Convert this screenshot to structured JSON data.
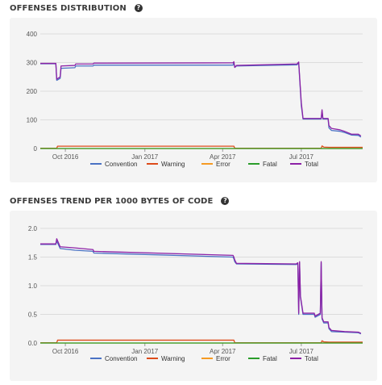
{
  "chart_data": [
    {
      "type": "line",
      "title": "OFFENSES DISTRIBUTION",
      "xlabel": "",
      "ylabel": "",
      "ylim": [
        0,
        400
      ],
      "y_ticks": [
        0,
        100,
        200,
        300,
        400
      ],
      "x_ticks": [
        {
          "label": "Oct 2016",
          "date": "2016-10-01"
        },
        {
          "label": "Jan 2017",
          "date": "2017-01-01"
        },
        {
          "label": "Apr 2017",
          "date": "2017-04-01"
        },
        {
          "label": "Jul 2017",
          "date": "2017-07-01"
        }
      ],
      "xlim": [
        "2016-09-02",
        "2017-09-10"
      ],
      "grid": "horizontal",
      "legend": "bottom",
      "series": [
        {
          "name": "Convention",
          "color": "#4a72c4",
          "points": [
            [
              "2016-09-02",
              296
            ],
            [
              "2016-09-20",
              296
            ],
            [
              "2016-09-21",
              238
            ],
            [
              "2016-09-25",
              245
            ],
            [
              "2016-09-26",
              280
            ],
            [
              "2016-10-12",
              282
            ],
            [
              "2016-10-13",
              288
            ],
            [
              "2016-11-02",
              288
            ],
            [
              "2016-11-03",
              291
            ],
            [
              "2017-04-13",
              291
            ],
            [
              "2017-04-14",
              299
            ],
            [
              "2017-04-15",
              283
            ],
            [
              "2017-04-17",
              288
            ],
            [
              "2017-06-26",
              292
            ],
            [
              "2017-06-28",
              298
            ],
            [
              "2017-07-01",
              150
            ],
            [
              "2017-07-03",
              103
            ],
            [
              "2017-07-24",
              103
            ],
            [
              "2017-07-25",
              130
            ],
            [
              "2017-07-26",
              103
            ],
            [
              "2017-08-01",
              103
            ],
            [
              "2017-08-02",
              72
            ],
            [
              "2017-08-05",
              63
            ],
            [
              "2017-08-15",
              60
            ],
            [
              "2017-08-20",
              56
            ],
            [
              "2017-08-28",
              47
            ],
            [
              "2017-09-05",
              46
            ],
            [
              "2017-09-08",
              40
            ]
          ]
        },
        {
          "name": "Warning",
          "color": "#dd4b1a",
          "points": [
            [
              "2016-09-02",
              1
            ],
            [
              "2016-09-21",
              1
            ],
            [
              "2016-09-22",
              8
            ],
            [
              "2017-04-14",
              8
            ],
            [
              "2017-04-15",
              1
            ],
            [
              "2017-07-24",
              1
            ],
            [
              "2017-07-25",
              9
            ],
            [
              "2017-07-27",
              5
            ],
            [
              "2017-08-02",
              4
            ],
            [
              "2017-09-10",
              4
            ]
          ]
        },
        {
          "name": "Error",
          "color": "#f59a23",
          "points": [
            [
              "2016-09-02",
              0
            ],
            [
              "2017-09-10",
              0
            ]
          ]
        },
        {
          "name": "Fatal",
          "color": "#2a9d2a",
          "points": [
            [
              "2016-09-02",
              0
            ],
            [
              "2017-09-10",
              0
            ]
          ]
        },
        {
          "name": "Total",
          "color": "#8c21a6",
          "points": [
            [
              "2016-09-02",
              297
            ],
            [
              "2016-09-20",
              297
            ],
            [
              "2016-09-21",
              242
            ],
            [
              "2016-09-25",
              250
            ],
            [
              "2016-09-26",
              288
            ],
            [
              "2016-10-12",
              290
            ],
            [
              "2016-10-13",
              295
            ],
            [
              "2016-11-02",
              295
            ],
            [
              "2016-11-03",
              298
            ],
            [
              "2017-04-13",
              299
            ],
            [
              "2017-04-14",
              303
            ],
            [
              "2017-04-15",
              283
            ],
            [
              "2017-04-17",
              290
            ],
            [
              "2017-06-26",
              295
            ],
            [
              "2017-06-28",
              302
            ],
            [
              "2017-07-01",
              160
            ],
            [
              "2017-07-03",
              105
            ],
            [
              "2017-07-24",
              105
            ],
            [
              "2017-07-25",
              135
            ],
            [
              "2017-07-26",
              105
            ],
            [
              "2017-08-01",
              105
            ],
            [
              "2017-08-02",
              80
            ],
            [
              "2017-08-05",
              70
            ],
            [
              "2017-08-15",
              65
            ],
            [
              "2017-08-20",
              60
            ],
            [
              "2017-08-28",
              50
            ],
            [
              "2017-09-05",
              50
            ],
            [
              "2017-09-08",
              44
            ]
          ]
        }
      ]
    },
    {
      "type": "line",
      "title": "OFFENSES TREND PER 1000 BYTES OF CODE",
      "xlabel": "",
      "ylabel": "",
      "ylim": [
        0,
        2.0
      ],
      "y_ticks": [
        0.0,
        0.5,
        1.0,
        1.5,
        2.0
      ],
      "x_ticks": [
        {
          "label": "Oct 2016",
          "date": "2016-10-01"
        },
        {
          "label": "Jan 2017",
          "date": "2017-01-01"
        },
        {
          "label": "Apr 2017",
          "date": "2017-04-01"
        },
        {
          "label": "Jul 2017",
          "date": "2017-07-01"
        }
      ],
      "xlim": [
        "2016-09-02",
        "2017-09-10"
      ],
      "grid": "horizontal",
      "legend": "bottom",
      "series": [
        {
          "name": "Convention",
          "color": "#4a72c4",
          "points": [
            [
              "2016-09-02",
              1.72
            ],
            [
              "2016-09-20",
              1.72
            ],
            [
              "2016-09-21",
              1.78
            ],
            [
              "2016-09-25",
              1.65
            ],
            [
              "2016-10-12",
              1.62
            ],
            [
              "2016-11-02",
              1.6
            ],
            [
              "2016-11-03",
              1.57
            ],
            [
              "2017-04-13",
              1.5
            ],
            [
              "2017-04-14",
              1.47
            ],
            [
              "2017-04-15",
              1.42
            ],
            [
              "2017-04-17",
              1.38
            ],
            [
              "2017-06-25",
              1.37
            ],
            [
              "2017-06-27",
              1.38
            ],
            [
              "2017-06-28",
              0.5
            ],
            [
              "2017-06-29",
              1.4
            ],
            [
              "2017-06-30",
              0.8
            ],
            [
              "2017-07-03",
              0.5
            ],
            [
              "2017-07-16",
              0.5
            ],
            [
              "2017-07-17",
              0.45
            ],
            [
              "2017-07-23",
              0.5
            ],
            [
              "2017-07-24",
              1.4
            ],
            [
              "2017-07-25",
              0.42
            ],
            [
              "2017-07-27",
              0.35
            ],
            [
              "2017-08-01",
              0.35
            ],
            [
              "2017-08-02",
              0.25
            ],
            [
              "2017-08-05",
              0.2
            ],
            [
              "2017-08-20",
              0.19
            ],
            [
              "2017-09-05",
              0.18
            ],
            [
              "2017-09-08",
              0.16
            ]
          ]
        },
        {
          "name": "Warning",
          "color": "#dd4b1a",
          "points": [
            [
              "2016-09-02",
              0.005
            ],
            [
              "2016-09-21",
              0.005
            ],
            [
              "2016-09-22",
              0.05
            ],
            [
              "2017-04-14",
              0.05
            ],
            [
              "2017-04-15",
              0.005
            ],
            [
              "2017-07-24",
              0.005
            ],
            [
              "2017-07-25",
              0.04
            ],
            [
              "2017-07-27",
              0.02
            ],
            [
              "2017-08-02",
              0.015
            ],
            [
              "2017-09-10",
              0.015
            ]
          ]
        },
        {
          "name": "Error",
          "color": "#f59a23",
          "points": [
            [
              "2016-09-02",
              0
            ],
            [
              "2017-09-10",
              0
            ]
          ]
        },
        {
          "name": "Fatal",
          "color": "#2a9d2a",
          "points": [
            [
              "2016-09-02",
              0
            ],
            [
              "2017-09-10",
              0
            ]
          ]
        },
        {
          "name": "Total",
          "color": "#8c21a6",
          "points": [
            [
              "2016-09-02",
              1.73
            ],
            [
              "2016-09-20",
              1.73
            ],
            [
              "2016-09-21",
              1.82
            ],
            [
              "2016-09-25",
              1.68
            ],
            [
              "2016-10-12",
              1.66
            ],
            [
              "2016-11-02",
              1.63
            ],
            [
              "2016-11-03",
              1.6
            ],
            [
              "2017-04-13",
              1.53
            ],
            [
              "2017-04-14",
              1.5
            ],
            [
              "2017-04-15",
              1.45
            ],
            [
              "2017-04-17",
              1.39
            ],
            [
              "2017-06-25",
              1.38
            ],
            [
              "2017-06-27",
              1.4
            ],
            [
              "2017-06-28",
              0.52
            ],
            [
              "2017-06-29",
              1.42
            ],
            [
              "2017-06-30",
              0.82
            ],
            [
              "2017-07-03",
              0.52
            ],
            [
              "2017-07-16",
              0.52
            ],
            [
              "2017-07-17",
              0.47
            ],
            [
              "2017-07-23",
              0.52
            ],
            [
              "2017-07-24",
              1.42
            ],
            [
              "2017-07-25",
              0.44
            ],
            [
              "2017-07-27",
              0.37
            ],
            [
              "2017-08-01",
              0.37
            ],
            [
              "2017-08-02",
              0.27
            ],
            [
              "2017-08-05",
              0.22
            ],
            [
              "2017-08-20",
              0.2
            ],
            [
              "2017-09-05",
              0.19
            ],
            [
              "2017-09-08",
              0.17
            ]
          ]
        }
      ]
    }
  ]
}
